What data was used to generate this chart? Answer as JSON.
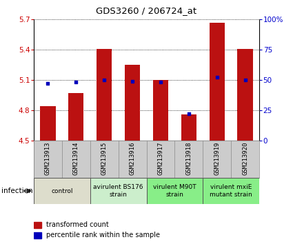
{
  "title": "GDS3260 / 206724_at",
  "samples": [
    "GSM213913",
    "GSM213914",
    "GSM213915",
    "GSM213916",
    "GSM213917",
    "GSM213918",
    "GSM213919",
    "GSM213920"
  ],
  "transformed_count": [
    4.84,
    4.97,
    5.41,
    5.25,
    5.1,
    4.76,
    5.67,
    5.41
  ],
  "percentile_rank": [
    47,
    48,
    50,
    49,
    48,
    22,
    52,
    50
  ],
  "ylim_left": [
    4.5,
    5.7
  ],
  "ylim_right": [
    0,
    100
  ],
  "yticks_left": [
    4.5,
    4.8,
    5.1,
    5.4,
    5.7
  ],
  "yticks_right": [
    0,
    25,
    50,
    75,
    100
  ],
  "bar_color": "#bb1111",
  "dot_color": "#0000bb",
  "bar_bottom": 4.5,
  "group_labels": [
    "control",
    "avirulent BS176\nstrain",
    "virulent M90T\nstrain",
    "virulent mxiE\nmutant strain"
  ],
  "group_ranges": [
    [
      0,
      1
    ],
    [
      2,
      3
    ],
    [
      4,
      5
    ],
    [
      6,
      7
    ]
  ],
  "group_colors": [
    "#ddddcc",
    "#cceecc",
    "#88ee88",
    "#88ee88"
  ],
  "sample_bg_color": "#cccccc",
  "xlabel_infection": "infection",
  "legend_bar_label": "transformed count",
  "legend_dot_label": "percentile rank within the sample",
  "tick_label_color_left": "#cc0000",
  "tick_label_color_right": "#0000cc"
}
